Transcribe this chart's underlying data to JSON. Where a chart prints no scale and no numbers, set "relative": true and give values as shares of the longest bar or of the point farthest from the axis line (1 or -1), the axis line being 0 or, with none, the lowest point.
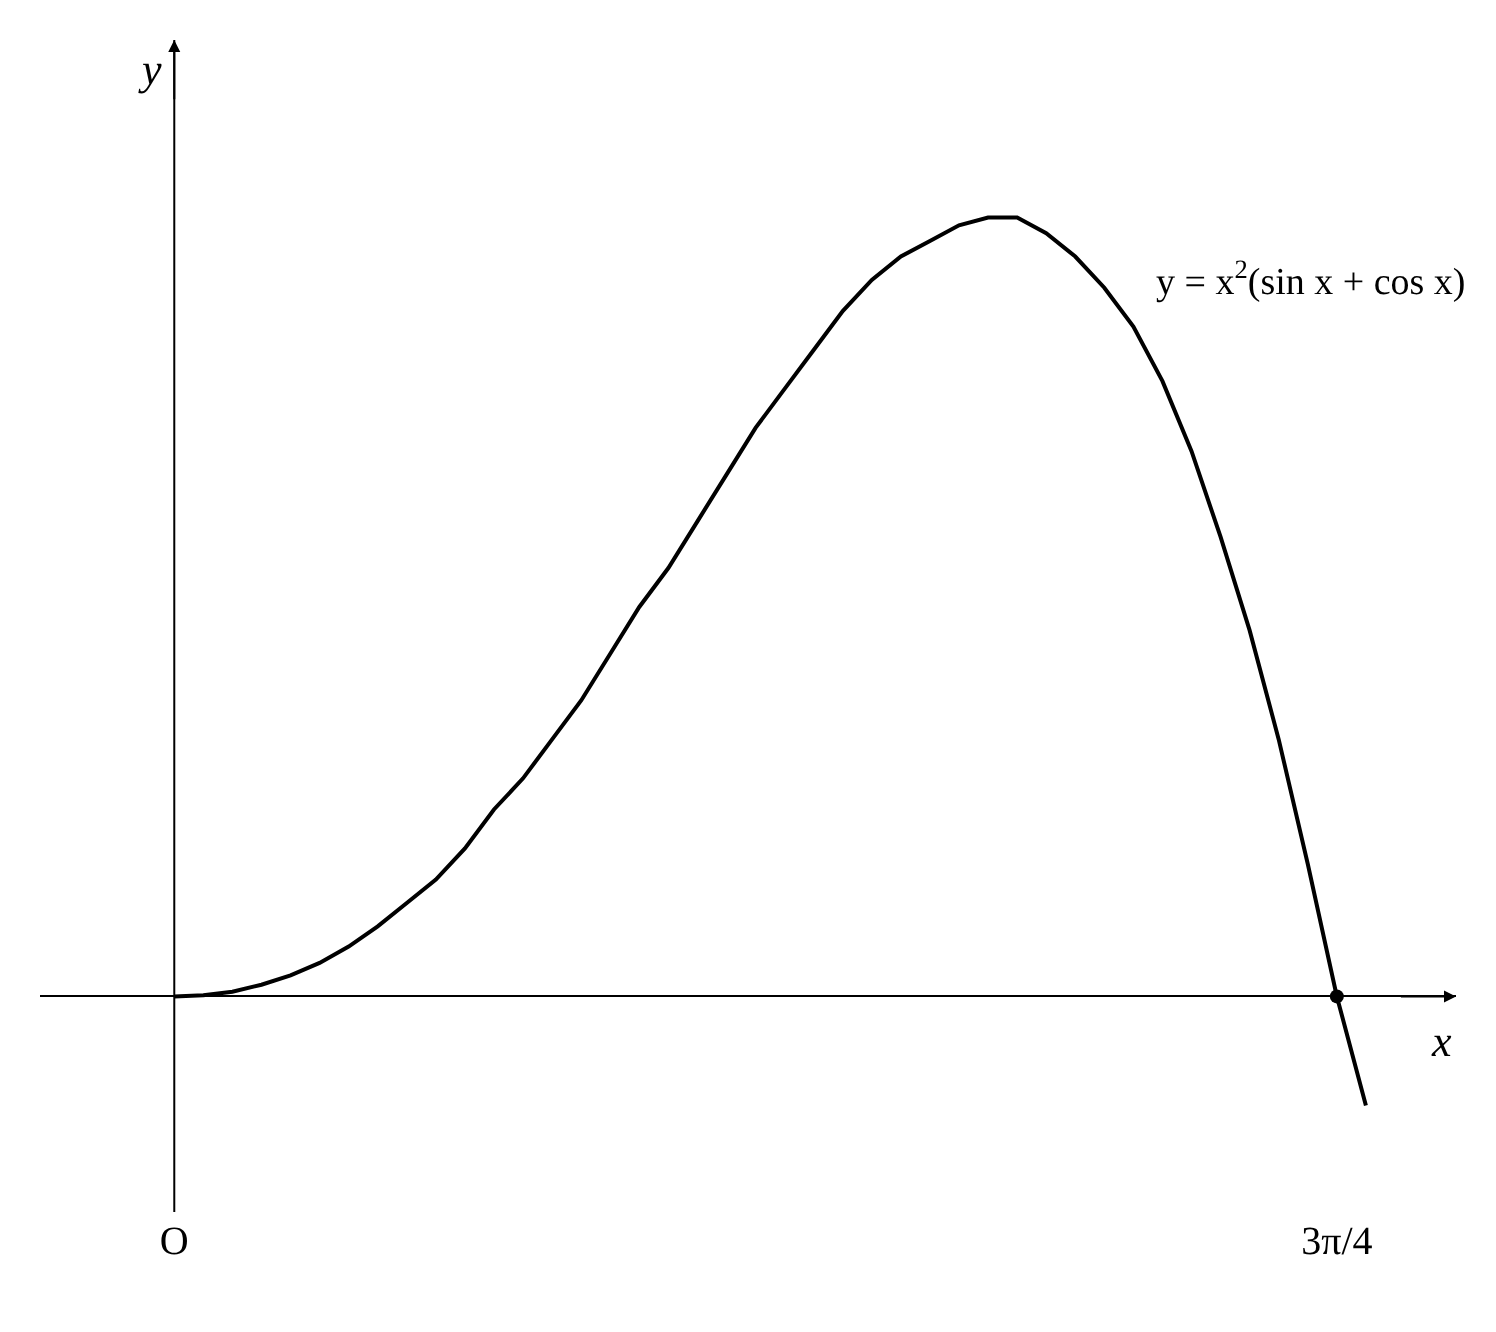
{
  "chart_data": {
    "type": "line",
    "relative": true,
    "xlabel": "x",
    "ylabel": "y",
    "categories": [
      "O",
      null,
      null,
      null,
      null,
      null,
      null,
      null,
      null,
      null,
      null,
      null,
      null,
      null,
      null,
      null,
      null,
      null,
      null,
      null,
      null,
      null,
      null,
      null,
      null,
      null,
      null,
      null,
      null,
      null,
      null,
      null,
      null,
      null,
      null,
      null,
      null,
      null,
      null,
      null,
      "3π/4",
      null
    ],
    "series": [
      {
        "color": "#000000",
        "values": [
          0,
          0.0015,
          0.006,
          0.015,
          0.027,
          0.043,
          0.064,
          0.09,
          0.12,
          0.15,
          0.19,
          0.24,
          0.28,
          0.33,
          0.38,
          0.44,
          0.5,
          0.55,
          0.61,
          0.67,
          0.73,
          0.78,
          0.83,
          0.88,
          0.92,
          0.95,
          0.97,
          0.99,
          1.0,
          1.0,
          0.98,
          0.95,
          0.91,
          0.86,
          0.79,
          0.7,
          0.59,
          0.47,
          0.33,
          0.17,
          0,
          -0.14
        ]
      },
      {
        "type": "scatter",
        "color": "#000000",
        "x": [
          "3π/4"
        ],
        "values": [
          0
        ]
      }
    ],
    "annotations": [
      "y = x$^{2}$(sin x + cos x)"
    ]
  }
}
